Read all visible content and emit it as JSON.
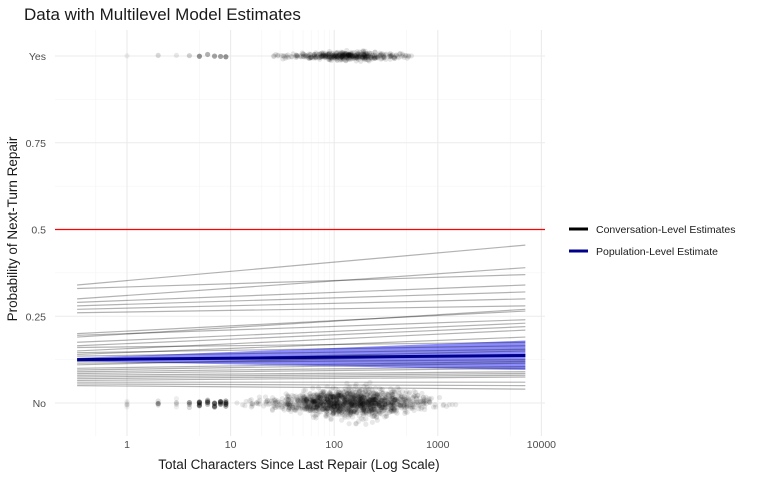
{
  "chart_data": {
    "type": "line",
    "title": "Data with Multilevel Model Estimates",
    "xlabel": "Total Characters Since Last Repair (Log Scale)",
    "ylabel": "Probability of Next-Turn Repair",
    "x_scale": "log10",
    "xlim": [
      0.3,
      7000
    ],
    "ylim": [
      -0.08,
      1.08
    ],
    "x_ticks": [
      1,
      10,
      100,
      1000,
      10000
    ],
    "x_tick_labels": [
      "1",
      "10",
      "100",
      "1000",
      "10000"
    ],
    "y_ticks": [
      0,
      0.25,
      0.5,
      0.75,
      1
    ],
    "y_tick_labels": [
      "No",
      "0.25",
      "0.5",
      "0.75",
      "Yes"
    ],
    "grid": true,
    "legend_position": "right",
    "reference_line": {
      "y": 0.5,
      "color": "#ff0000"
    },
    "colors": {
      "conversation": "#000000",
      "population": "#00008b",
      "ribbon": "#0000ff",
      "points": "#000000",
      "grid": "#ebebeb"
    },
    "legend": [
      {
        "label": "Conversation-Level Estimates",
        "color": "#000000"
      },
      {
        "label": "Population-Level Estimate",
        "color": "#00008b"
      }
    ],
    "series": [
      {
        "name": "Population-Level Estimate",
        "x": [
          0.33,
          7000
        ],
        "y": [
          0.125,
          0.137
        ],
        "ribbon_lower": [
          0.12,
          0.095
        ],
        "ribbon_upper": [
          0.13,
          0.18
        ]
      },
      {
        "name": "Conversation-Level Estimates",
        "lines": [
          [
            0.34,
            0.455
          ],
          [
            0.33,
            0.37
          ],
          [
            0.3,
            0.39
          ],
          [
            0.29,
            0.34
          ],
          [
            0.28,
            0.32
          ],
          [
            0.27,
            0.3
          ],
          [
            0.26,
            0.28
          ],
          [
            0.2,
            0.265
          ],
          [
            0.19,
            0.27
          ],
          [
            0.195,
            0.24
          ],
          [
            0.175,
            0.23
          ],
          [
            0.165,
            0.22
          ],
          [
            0.15,
            0.21
          ],
          [
            0.16,
            0.175
          ],
          [
            0.14,
            0.19
          ],
          [
            0.145,
            0.165
          ],
          [
            0.135,
            0.155
          ],
          [
            0.12,
            0.15
          ],
          [
            0.11,
            0.14
          ],
          [
            0.115,
            0.125
          ],
          [
            0.1,
            0.12
          ],
          [
            0.095,
            0.115
          ],
          [
            0.09,
            0.105
          ],
          [
            0.085,
            0.1
          ],
          [
            0.08,
            0.09
          ],
          [
            0.075,
            0.085
          ],
          [
            0.07,
            0.08
          ],
          [
            0.065,
            0.075
          ],
          [
            0.06,
            0.06
          ],
          [
            0.055,
            0.05
          ],
          [
            0.05,
            0.04
          ]
        ],
        "x_range": [
          0.33,
          7000
        ]
      }
    ]
  }
}
